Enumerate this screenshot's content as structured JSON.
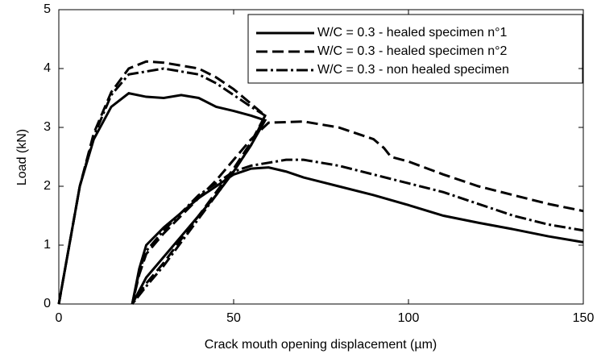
{
  "chart_data": {
    "type": "line",
    "xlabel": "Crack mouth opening displacement (µm)",
    "ylabel": "Load (kN)",
    "xlim": [
      0,
      150
    ],
    "xticks": [
      0,
      50,
      100,
      150
    ],
    "ylim": [
      0,
      5
    ],
    "yticks": [
      0,
      1,
      2,
      3,
      4,
      5
    ],
    "legend": "upper right",
    "series": [
      {
        "name": "W/C = 0.3 - healed specimen n°1",
        "color": "#000000",
        "line_style": "solid",
        "x": [
          0,
          3,
          6,
          10,
          15,
          20,
          25,
          30,
          35,
          40,
          45,
          50,
          55,
          59,
          55,
          50,
          45,
          40,
          35,
          30,
          25,
          21,
          23,
          25,
          30,
          35,
          40,
          45,
          50,
          55,
          60,
          65,
          70,
          80,
          90,
          100,
          110,
          120,
          130,
          140,
          150
        ],
        "y": [
          0,
          1,
          2,
          2.8,
          3.35,
          3.58,
          3.52,
          3.5,
          3.55,
          3.5,
          3.35,
          3.28,
          3.2,
          3.12,
          2.7,
          2.25,
          1.85,
          1.5,
          1.15,
          0.8,
          0.45,
          0,
          0.6,
          1.0,
          1.3,
          1.55,
          1.8,
          2.0,
          2.2,
          2.3,
          2.32,
          2.25,
          2.15,
          2.0,
          1.85,
          1.68,
          1.5,
          1.38,
          1.27,
          1.15,
          1.05
        ]
      },
      {
        "name": "W/C = 0.3 - healed specimen n°2",
        "color": "#000000",
        "line_style": "dashed",
        "x": [
          0,
          3,
          6,
          10,
          15,
          20,
          25,
          30,
          35,
          40,
          45,
          50,
          55,
          59,
          55,
          50,
          45,
          40,
          35,
          30,
          25,
          21,
          23,
          25,
          30,
          35,
          40,
          45,
          50,
          55,
          60,
          70,
          80,
          90,
          93,
          95,
          100,
          110,
          120,
          130,
          140,
          150
        ],
        "y": [
          0,
          1,
          2,
          2.9,
          3.6,
          4.0,
          4.12,
          4.1,
          4.05,
          4.0,
          3.85,
          3.65,
          3.4,
          3.2,
          2.75,
          2.3,
          1.9,
          1.5,
          1.1,
          0.7,
          0.35,
          0,
          0.5,
          0.85,
          1.2,
          1.5,
          1.8,
          2.1,
          2.45,
          2.8,
          3.08,
          3.1,
          3.0,
          2.8,
          2.65,
          2.5,
          2.42,
          2.2,
          2.0,
          1.85,
          1.7,
          1.58
        ]
      },
      {
        "name": "W/C = 0.3 - non healed specimen",
        "color": "#000000",
        "line_style": "dashdot",
        "x": [
          0,
          3,
          6,
          10,
          15,
          20,
          25,
          30,
          35,
          40,
          45,
          50,
          55,
          59,
          55,
          50,
          45,
          40,
          35,
          30,
          25,
          21,
          23,
          25,
          30,
          35,
          40,
          45,
          50,
          55,
          60,
          65,
          70,
          80,
          90,
          100,
          110,
          120,
          130,
          140,
          150
        ],
        "y": [
          0,
          1,
          2,
          2.85,
          3.55,
          3.9,
          3.95,
          4.0,
          3.95,
          3.9,
          3.75,
          3.55,
          3.35,
          3.2,
          2.7,
          2.25,
          1.85,
          1.45,
          1.05,
          0.65,
          0.3,
          0,
          0.55,
          0.9,
          1.25,
          1.55,
          1.85,
          2.05,
          2.25,
          2.35,
          2.4,
          2.45,
          2.45,
          2.35,
          2.2,
          2.05,
          1.9,
          1.7,
          1.5,
          1.35,
          1.25
        ]
      }
    ]
  }
}
